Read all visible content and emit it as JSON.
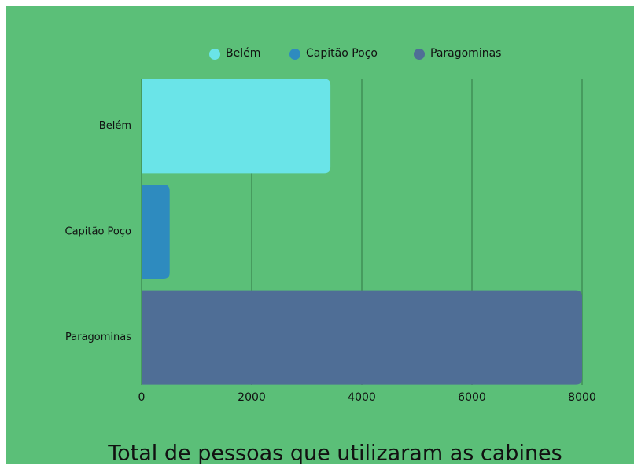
{
  "chart_data": {
    "type": "bar",
    "orientation": "horizontal",
    "title": "Total de pessoas que utilizaram as cabines",
    "categories": [
      "Belém",
      "Capitão Poço",
      "Paragominas"
    ],
    "values": [
      3430,
      510,
      8000
    ],
    "colors": [
      "#6ae4e8",
      "#2e8bbf",
      "#4f6e96"
    ],
    "xlim": [
      0,
      8000
    ],
    "xticks": [
      0,
      2000,
      4000,
      6000,
      8000
    ],
    "grid": true,
    "legend": "top"
  }
}
